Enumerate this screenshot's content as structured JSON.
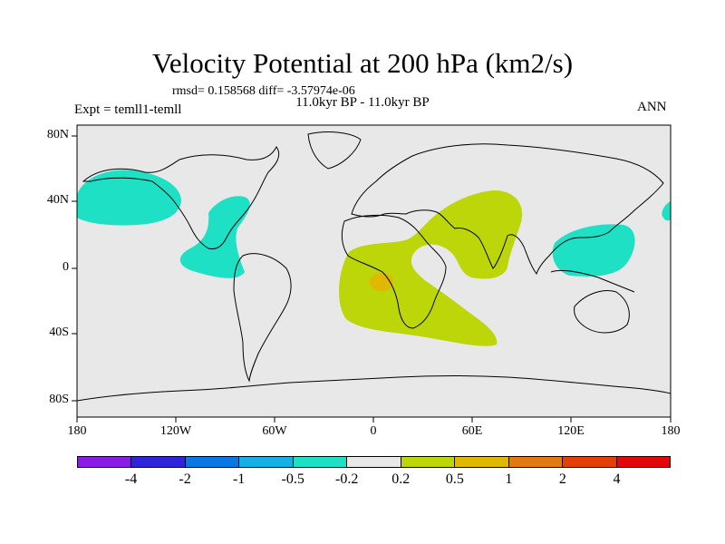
{
  "title": "Velocity Potential at 200 hPa (km2/s)",
  "stats": "rmsd= 0.158568 diff= -3.57974e-06",
  "period": "11.0kyr BP - 11.0kyr BP",
  "experiment": "Expt = temll1-temll",
  "season": "ANN",
  "y_ticks": [
    "80N",
    "40N",
    "0",
    "40S",
    "80S"
  ],
  "x_ticks": [
    "180",
    "120W",
    "60W",
    "0",
    "60E",
    "120E",
    "180"
  ],
  "colorbar": {
    "colors": [
      "#8a1ce6",
      "#3024d9",
      "#0a78e2",
      "#16b0e8",
      "#1ee0c4",
      "#e8e8e8",
      "#bcd60a",
      "#e0b800",
      "#e27a10",
      "#e24008",
      "#e00808"
    ],
    "labels": [
      "-4",
      "-2",
      "-1",
      "-0.5",
      "-0.2",
      "0.2",
      "0.5",
      "1",
      "2",
      "4"
    ]
  },
  "map_colors": {
    "background": "#e8e8e8",
    "negative": "#1ee0c4",
    "positive": "#bcd60a",
    "strong_positive": "#e0b800"
  }
}
